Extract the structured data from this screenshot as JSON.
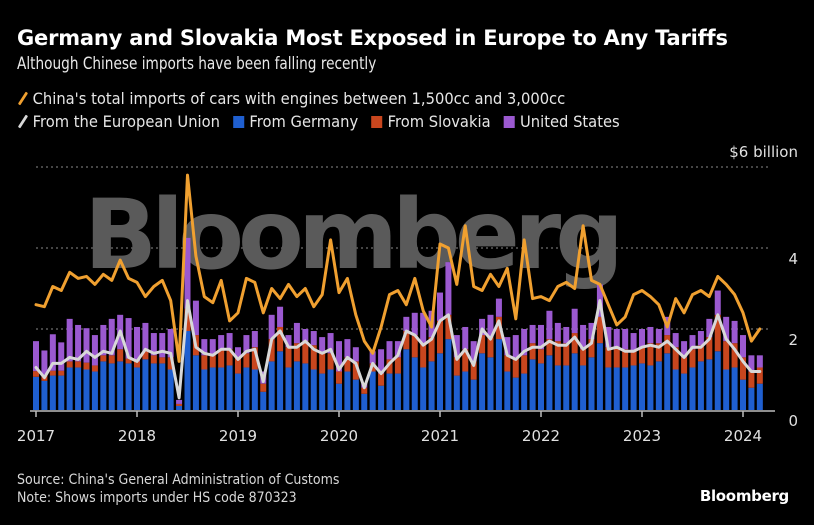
{
  "header": {
    "title": "Germany and Slovakia Most Exposed in Europe to Any Tariffs",
    "subtitle": "Although Chinese imports have been falling recently"
  },
  "legend": [
    {
      "label": "China's total imports of cars with engines between 1,500cc and 3,000cc",
      "kind": "line",
      "color": "#f0a030"
    },
    {
      "label": "From the European Union",
      "kind": "line",
      "color": "#d8d8d8"
    },
    {
      "label": "From Germany",
      "kind": "bar",
      "color": "#1f5fd0"
    },
    {
      "label": "From Slovakia",
      "kind": "bar",
      "color": "#c8461e"
    },
    {
      "label": "United States",
      "kind": "bar",
      "color": "#9b59d0"
    }
  ],
  "footer": {
    "source": "Source: China's General Administration of Customs",
    "note": "Note: Shows imports under HS code 870323",
    "logo": "Bloomberg"
  },
  "watermark": "Bloomberg",
  "chart_data": {
    "type": "bar",
    "subtype": "stacked bar with line overlays",
    "title": "Germany and Slovakia Most Exposed in Europe to Any Tariffs",
    "subtitle": "Although Chinese imports have been falling recently",
    "xlabel": "",
    "ylabel": "$ billion",
    "y_unit_label": "$6 billion",
    "ylim": [
      0,
      6
    ],
    "yticks": [
      0,
      2,
      4,
      6
    ],
    "ytick_labels": [
      "0",
      "2",
      "4",
      "$6 billion"
    ],
    "xtick_labels": [
      "2017",
      "2018",
      "2019",
      "2020",
      "2021",
      "2022",
      "2023",
      "2024"
    ],
    "x_start": "2017-01",
    "x_end": "2024-03",
    "frequency": "monthly",
    "grid": true,
    "legend_position": "top-left",
    "series": [
      {
        "name": "From Germany",
        "kind": "bar",
        "color": "#1f5fd0",
        "values": [
          0.82,
          0.72,
          0.85,
          0.85,
          1.05,
          1.05,
          1.0,
          0.95,
          1.2,
          1.15,
          1.2,
          1.15,
          1.05,
          1.25,
          1.15,
          1.15,
          1.0,
          0.1,
          1.95,
          1.35,
          1.0,
          1.05,
          1.05,
          1.1,
          0.9,
          1.05,
          1.0,
          0.45,
          1.2,
          1.45,
          1.05,
          1.2,
          1.15,
          1.0,
          0.9,
          1.0,
          0.65,
          0.95,
          0.75,
          0.4,
          0.95,
          0.6,
          0.9,
          0.9,
          1.5,
          1.3,
          1.05,
          1.2,
          1.4,
          1.75,
          0.85,
          0.95,
          0.75,
          1.4,
          1.3,
          1.75,
          0.95,
          0.8,
          0.9,
          1.25,
          1.15,
          1.35,
          1.1,
          1.1,
          1.4,
          1.1,
          1.3,
          1.65,
          1.05,
          1.05,
          1.05,
          1.1,
          1.15,
          1.1,
          1.2,
          1.4,
          1.0,
          0.9,
          1.05,
          1.2,
          1.25,
          1.45,
          1.0,
          1.05,
          0.75,
          0.55,
          0.65
        ]
      },
      {
        "name": "From Slovakia",
        "kind": "bar",
        "color": "#c8461e",
        "values": [
          0.14,
          0.15,
          0.12,
          0.12,
          0.15,
          0.15,
          0.17,
          0.15,
          0.15,
          0.2,
          0.3,
          0.12,
          0.15,
          0.2,
          0.2,
          0.15,
          0.3,
          0.05,
          0.55,
          0.5,
          0.35,
          0.3,
          0.45,
          0.4,
          0.4,
          0.35,
          0.55,
          0.2,
          0.55,
          0.6,
          0.5,
          0.45,
          0.55,
          0.6,
          0.5,
          0.4,
          0.3,
          0.35,
          0.45,
          0.15,
          0.2,
          0.3,
          0.35,
          0.4,
          0.45,
          0.55,
          0.6,
          0.6,
          0.8,
          0.6,
          0.45,
          0.55,
          0.45,
          0.45,
          0.5,
          0.55,
          0.4,
          0.5,
          0.45,
          0.4,
          0.35,
          0.4,
          0.6,
          0.55,
          0.5,
          0.4,
          0.45,
          0.65,
          0.5,
          0.5,
          0.45,
          0.35,
          0.4,
          0.55,
          0.45,
          0.45,
          0.55,
          0.4,
          0.45,
          0.4,
          0.55,
          0.9,
          0.7,
          0.6,
          0.55,
          0.4,
          0.4
        ]
      },
      {
        "name": "United States",
        "kind": "bar",
        "color": "#9b59d0",
        "values": [
          0.74,
          0.6,
          0.9,
          0.7,
          1.05,
          0.9,
          0.85,
          0.75,
          0.75,
          0.9,
          0.85,
          1.0,
          0.85,
          0.7,
          0.55,
          0.6,
          0.7,
          0.1,
          1.75,
          0.85,
          0.4,
          0.4,
          0.35,
          0.4,
          0.25,
          0.45,
          0.4,
          0.3,
          0.6,
          0.5,
          0.3,
          0.5,
          0.3,
          0.35,
          0.4,
          0.5,
          0.75,
          0.45,
          0.35,
          0.1,
          0.3,
          0.6,
          0.45,
          0.4,
          0.35,
          0.55,
          0.75,
          0.65,
          0.7,
          1.3,
          0.55,
          0.55,
          0.5,
          0.4,
          0.55,
          0.45,
          0.45,
          0.55,
          0.65,
          0.45,
          0.6,
          0.7,
          0.45,
          0.4,
          0.6,
          0.6,
          0.4,
          0.8,
          0.5,
          0.45,
          0.5,
          0.45,
          0.45,
          0.4,
          0.35,
          0.45,
          0.35,
          0.4,
          0.35,
          0.35,
          0.45,
          0.6,
          0.6,
          0.55,
          0.55,
          0.4,
          0.3
        ]
      },
      {
        "name": "From the European Union",
        "kind": "line",
        "color": "#d8d8d8",
        "values": [
          1.05,
          0.8,
          1.15,
          1.15,
          1.3,
          1.25,
          1.45,
          1.3,
          1.45,
          1.4,
          1.95,
          1.3,
          1.2,
          1.5,
          1.4,
          1.45,
          1.4,
          0.3,
          2.7,
          1.55,
          1.4,
          1.35,
          1.5,
          1.5,
          1.25,
          1.45,
          1.5,
          0.7,
          1.75,
          1.95,
          1.55,
          1.55,
          1.7,
          1.5,
          1.4,
          1.5,
          1.0,
          1.3,
          1.15,
          0.55,
          1.15,
          0.9,
          1.15,
          1.35,
          1.95,
          1.85,
          1.6,
          1.75,
          2.2,
          2.35,
          1.25,
          1.5,
          1.1,
          2.0,
          1.75,
          2.2,
          1.35,
          1.25,
          1.45,
          1.55,
          1.55,
          1.7,
          1.6,
          1.6,
          1.8,
          1.5,
          1.65,
          2.7,
          1.5,
          1.55,
          1.45,
          1.45,
          1.55,
          1.6,
          1.55,
          1.7,
          1.5,
          1.3,
          1.55,
          1.55,
          1.75,
          2.35,
          1.75,
          1.5,
          1.2,
          0.95,
          0.95
        ]
      },
      {
        "name": "China's total imports of cars with engines between 1,500cc and 3,000cc",
        "kind": "line",
        "color": "#f0a030",
        "values": [
          2.6,
          2.55,
          3.05,
          2.95,
          3.4,
          3.25,
          3.3,
          3.1,
          3.35,
          3.2,
          3.7,
          3.25,
          3.15,
          2.8,
          3.05,
          3.2,
          2.7,
          1.2,
          5.8,
          3.8,
          2.8,
          2.65,
          3.2,
          2.2,
          2.4,
          3.25,
          3.15,
          2.4,
          3.0,
          2.75,
          3.1,
          2.8,
          3.0,
          2.55,
          2.85,
          4.2,
          2.9,
          3.25,
          2.35,
          1.7,
          1.4,
          2.05,
          2.85,
          2.95,
          2.6,
          3.25,
          2.45,
          2.05,
          4.1,
          4.0,
          3.1,
          4.55,
          3.05,
          2.95,
          3.35,
          3.05,
          3.5,
          2.25,
          4.2,
          2.75,
          2.8,
          2.7,
          3.05,
          3.15,
          3.0,
          4.55,
          3.2,
          3.1,
          2.6,
          2.1,
          2.3,
          2.85,
          2.95,
          2.8,
          2.6,
          2.05,
          2.75,
          2.4,
          2.85,
          2.95,
          2.8,
          3.3,
          3.1,
          2.85,
          2.4,
          1.7,
          2.0
        ]
      }
    ]
  }
}
